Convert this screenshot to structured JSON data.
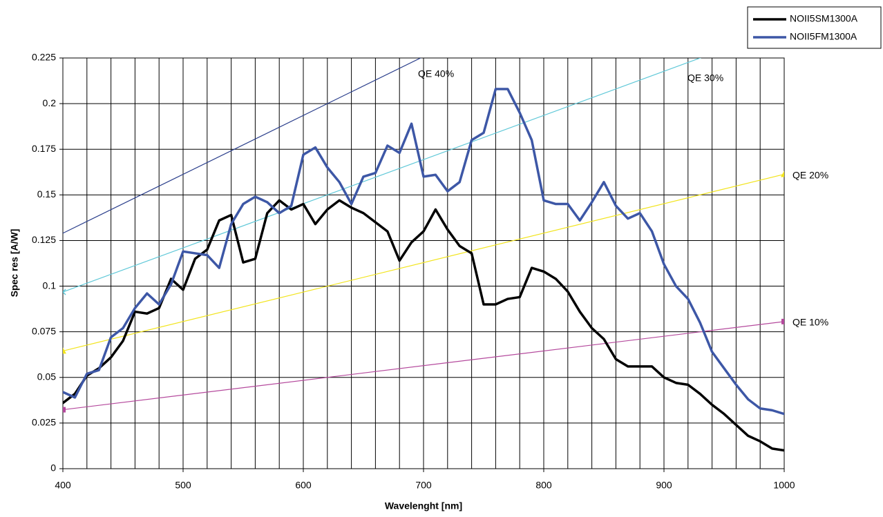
{
  "chart_data": {
    "type": "line",
    "x_label": "Wavelenght [nm]",
    "y_label": "Spec res [A/W]",
    "x": [
      400,
      410,
      420,
      430,
      440,
      450,
      460,
      470,
      480,
      490,
      500,
      510,
      520,
      530,
      540,
      550,
      560,
      570,
      580,
      590,
      600,
      610,
      620,
      630,
      640,
      650,
      660,
      670,
      680,
      690,
      700,
      710,
      720,
      730,
      740,
      750,
      760,
      770,
      780,
      790,
      800,
      810,
      820,
      830,
      840,
      850,
      860,
      870,
      880,
      890,
      900,
      910,
      920,
      930,
      940,
      950,
      960,
      970,
      980,
      990,
      1000
    ],
    "series": [
      {
        "name": "NOII5SM1300A",
        "color": "#000000",
        "values": [
          0.036,
          0.041,
          0.051,
          0.055,
          0.061,
          0.07,
          0.086,
          0.085,
          0.088,
          0.104,
          0.098,
          0.115,
          0.12,
          0.136,
          0.139,
          0.113,
          0.115,
          0.14,
          0.147,
          0.142,
          0.145,
          0.134,
          0.142,
          0.147,
          0.143,
          0.14,
          0.135,
          0.13,
          0.114,
          0.124,
          0.13,
          0.142,
          0.131,
          0.122,
          0.118,
          0.09,
          0.09,
          0.093,
          0.094,
          0.11,
          0.108,
          0.104,
          0.097,
          0.086,
          0.077,
          0.071,
          0.06,
          0.056,
          0.056,
          0.056,
          0.05,
          0.047,
          0.046,
          0.041,
          0.035,
          0.03,
          0.024,
          0.018,
          0.015,
          0.011,
          0.01
        ]
      },
      {
        "name": "NOII5FM1300A",
        "color": "#3d57a6",
        "values": [
          0.042,
          0.039,
          0.052,
          0.054,
          0.072,
          0.077,
          0.088,
          0.096,
          0.09,
          0.101,
          0.119,
          0.118,
          0.117,
          0.11,
          0.134,
          0.145,
          0.149,
          0.146,
          0.14,
          0.144,
          0.172,
          0.176,
          0.165,
          0.157,
          0.145,
          0.16,
          0.162,
          0.177,
          0.173,
          0.189,
          0.16,
          0.161,
          0.152,
          0.157,
          0.18,
          0.184,
          0.208,
          0.208,
          0.195,
          0.18,
          0.147,
          0.145,
          0.145,
          0.136,
          0.146,
          0.157,
          0.144,
          0.137,
          0.14,
          0.13,
          0.112,
          0.1,
          0.093,
          0.08,
          0.064,
          0.055,
          0.046,
          0.038,
          0.033,
          0.032,
          0.03
        ]
      }
    ],
    "reference_lines": [
      {
        "label": "QE 40%",
        "color": "#2b3f8c",
        "x": [
          400,
          1000
        ],
        "values": [
          0.129,
          0.3226
        ],
        "marker": "none"
      },
      {
        "label": "QE 30%",
        "color": "#5fc8d8",
        "x": [
          400,
          1000
        ],
        "values": [
          0.0968,
          0.2419
        ],
        "marker": "x"
      },
      {
        "label": "QE 20%",
        "color": "#f2e41c",
        "x": [
          400,
          1000
        ],
        "values": [
          0.0645,
          0.1613
        ],
        "marker": "triangle"
      },
      {
        "label": "QE 10%",
        "color": "#b4489c",
        "x": [
          400,
          1000
        ],
        "values": [
          0.0323,
          0.0806
        ],
        "marker": "square"
      }
    ],
    "xlim": [
      400,
      1000
    ],
    "ylim": [
      0,
      0.225
    ],
    "xticks": [
      400,
      500,
      600,
      700,
      800,
      900,
      1000
    ],
    "x_minor_ticks": [
      420,
      440,
      460,
      480,
      520,
      540,
      560,
      580,
      620,
      640,
      660,
      680,
      720,
      740,
      760,
      780,
      820,
      840,
      860,
      880,
      920,
      940,
      960,
      980
    ],
    "yticks": [
      0,
      0.025,
      0.05,
      0.075,
      0.1,
      0.125,
      0.15,
      0.175,
      0.2,
      0.225
    ],
    "grid": true,
    "legend": "top-right"
  }
}
